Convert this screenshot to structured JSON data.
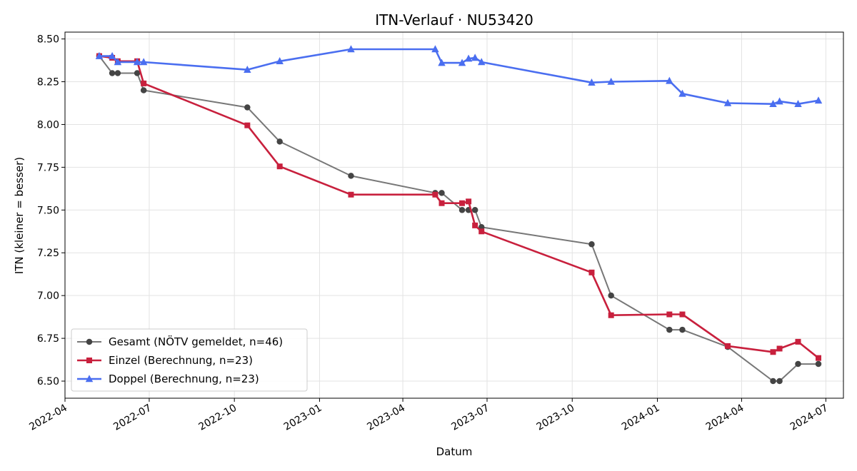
{
  "chart_data": {
    "type": "line",
    "title": "ITN-Verlauf · NU53420",
    "xlabel": "Datum",
    "ylabel": "ITN  (kleiner = besser)",
    "x_axis": "date",
    "xlim": [
      "2022-04-01",
      "2024-07-20"
    ],
    "ylim": [
      6.4,
      8.54
    ],
    "x_ticks": [
      "2022-04",
      "2022-07",
      "2022-10",
      "2023-01",
      "2023-04",
      "2023-07",
      "2023-10",
      "2024-01",
      "2024-04",
      "2024-07"
    ],
    "y_ticks": [
      "6.50",
      "6.75",
      "7.00",
      "7.25",
      "7.50",
      "7.75",
      "8.00",
      "8.25",
      "8.50"
    ],
    "grid": true,
    "legend_position": "lower-left",
    "series": [
      {
        "name": "Gesamt (NÖTV gemeldet, n=46)",
        "color": "#777777",
        "marker_color": "#444444",
        "marker": "circle",
        "points": [
          [
            "2022-05-08",
            8.4
          ],
          [
            "2022-05-22",
            8.3
          ],
          [
            "2022-05-28",
            8.3
          ],
          [
            "2022-06-18",
            8.3
          ],
          [
            "2022-06-25",
            8.2
          ],
          [
            "2022-10-15",
            8.1
          ],
          [
            "2022-11-19",
            7.9
          ],
          [
            "2023-02-04",
            7.7
          ],
          [
            "2023-05-06",
            7.6
          ],
          [
            "2023-05-13",
            7.6
          ],
          [
            "2023-06-04",
            7.5
          ],
          [
            "2023-06-11",
            7.5
          ],
          [
            "2023-06-18",
            7.5
          ],
          [
            "2023-06-25",
            7.4
          ],
          [
            "2023-10-22",
            7.3
          ],
          [
            "2023-11-12",
            7.0
          ],
          [
            "2024-01-14",
            6.8
          ],
          [
            "2024-01-28",
            6.8
          ],
          [
            "2024-03-17",
            6.7
          ],
          [
            "2024-05-05",
            6.5
          ],
          [
            "2024-05-12",
            6.5
          ],
          [
            "2024-06-01",
            6.6
          ],
          [
            "2024-06-23",
            6.6
          ]
        ]
      },
      {
        "name": "Einzel (Berechnung, n=23)",
        "color": "#c8203d",
        "marker": "square",
        "points": [
          [
            "2022-05-08",
            8.4
          ],
          [
            "2022-05-22",
            8.39
          ],
          [
            "2022-05-28",
            8.37
          ],
          [
            "2022-06-18",
            8.37
          ],
          [
            "2022-06-25",
            8.24
          ],
          [
            "2022-10-15",
            7.995
          ],
          [
            "2022-11-19",
            7.755
          ],
          [
            "2023-02-04",
            7.59
          ],
          [
            "2023-05-06",
            7.59
          ],
          [
            "2023-05-13",
            7.54
          ],
          [
            "2023-06-04",
            7.54
          ],
          [
            "2023-06-11",
            7.55
          ],
          [
            "2023-06-18",
            7.41
          ],
          [
            "2023-06-25",
            7.375
          ],
          [
            "2023-10-22",
            7.135
          ],
          [
            "2023-11-12",
            6.885
          ],
          [
            "2024-01-14",
            6.89
          ],
          [
            "2024-01-28",
            6.89
          ],
          [
            "2024-03-17",
            6.705
          ],
          [
            "2024-05-05",
            6.67
          ],
          [
            "2024-05-12",
            6.69
          ],
          [
            "2024-06-01",
            6.73
          ],
          [
            "2024-06-23",
            6.635
          ]
        ]
      },
      {
        "name": "Doppel (Berechnung, n=23)",
        "color": "#4a6ef0",
        "marker": "triangle",
        "points": [
          [
            "2022-05-08",
            8.4
          ],
          [
            "2022-05-22",
            8.4
          ],
          [
            "2022-05-28",
            8.365
          ],
          [
            "2022-06-18",
            8.365
          ],
          [
            "2022-06-25",
            8.365
          ],
          [
            "2022-10-15",
            8.32
          ],
          [
            "2022-11-19",
            8.37
          ],
          [
            "2023-02-04",
            8.44
          ],
          [
            "2023-05-06",
            8.44
          ],
          [
            "2023-05-13",
            8.36
          ],
          [
            "2023-06-04",
            8.36
          ],
          [
            "2023-06-11",
            8.385
          ],
          [
            "2023-06-18",
            8.39
          ],
          [
            "2023-06-25",
            8.365
          ],
          [
            "2023-10-22",
            8.245
          ],
          [
            "2023-11-12",
            8.25
          ],
          [
            "2024-01-14",
            8.255
          ],
          [
            "2024-01-28",
            8.18
          ],
          [
            "2024-03-17",
            8.125
          ],
          [
            "2024-05-05",
            8.12
          ],
          [
            "2024-05-12",
            8.135
          ],
          [
            "2024-06-01",
            8.12
          ],
          [
            "2024-06-23",
            8.14
          ]
        ]
      }
    ]
  }
}
